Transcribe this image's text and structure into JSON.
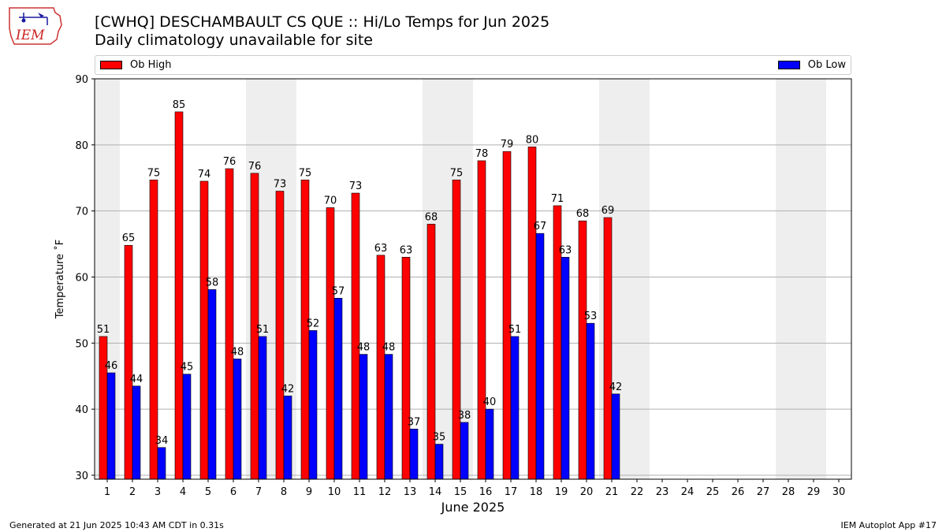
{
  "page": {
    "title_line1": "[CWHQ] DESCHAMBAULT CS  QUE :: Hi/Lo Temps for Jun 2025",
    "title_line2": "Daily climatology unavailable for site",
    "logo_text": "IEM",
    "footer_left": "Generated at 21 Jun 2025 10:43 AM CDT in 0.31s",
    "footer_right": "IEM Autoplot App #17"
  },
  "chart_data": {
    "type": "bar",
    "xlabel": "June 2025",
    "ylabel": "Temperature ˚F",
    "ylim": [
      29.4,
      90
    ],
    "yticks": [
      30,
      40,
      50,
      60,
      70,
      80,
      90
    ],
    "categories": [
      "1",
      "2",
      "3",
      "4",
      "5",
      "6",
      "7",
      "8",
      "9",
      "10",
      "11",
      "12",
      "13",
      "14",
      "15",
      "16",
      "17",
      "18",
      "19",
      "20",
      "21",
      "22",
      "23",
      "24",
      "25",
      "26",
      "27",
      "28",
      "29",
      "30"
    ],
    "series": [
      {
        "name": "Ob High",
        "color": "#ff0000",
        "values": [
          51.0,
          64.8,
          74.7,
          85.0,
          74.5,
          76.4,
          75.7,
          73.0,
          74.7,
          70.5,
          72.7,
          63.3,
          63.0,
          68.0,
          74.7,
          77.6,
          79.0,
          79.7,
          70.8,
          68.5,
          69.0,
          null,
          null,
          null,
          null,
          null,
          null,
          null,
          null,
          null
        ],
        "labels": [
          "51",
          "65",
          "75",
          "85",
          "74",
          "76",
          "76",
          "73",
          "75",
          "70",
          "73",
          "63",
          "63",
          "68",
          "75",
          "78",
          "79",
          "80",
          "71",
          "68",
          "69",
          "",
          "",
          "",
          "",
          "",
          "",
          "",
          "",
          ""
        ]
      },
      {
        "name": "Ob Low",
        "color": "#0000ff",
        "values": [
          45.5,
          43.5,
          34.2,
          45.3,
          58.1,
          47.6,
          51.0,
          42.0,
          51.9,
          56.8,
          48.3,
          48.3,
          37.0,
          34.7,
          38.0,
          40.0,
          51.0,
          66.6,
          63.0,
          53.0,
          42.3,
          null,
          null,
          null,
          null,
          null,
          null,
          null,
          null,
          null
        ],
        "labels": [
          "46",
          "44",
          "34",
          "45",
          "58",
          "48",
          "51",
          "42",
          "52",
          "57",
          "48",
          "48",
          "37",
          "35",
          "38",
          "40",
          "51",
          "67",
          "63",
          "53",
          "42",
          "",
          "",
          "",
          "",
          "",
          "",
          "",
          "",
          ""
        ]
      }
    ],
    "weekend_shading": [
      [
        1,
        1
      ],
      [
        7,
        8
      ],
      [
        14,
        15
      ],
      [
        21,
        22
      ],
      [
        28,
        29
      ]
    ],
    "shade_color": "#eeeeee",
    "grid": true,
    "legend_position": "top, spanning width"
  }
}
